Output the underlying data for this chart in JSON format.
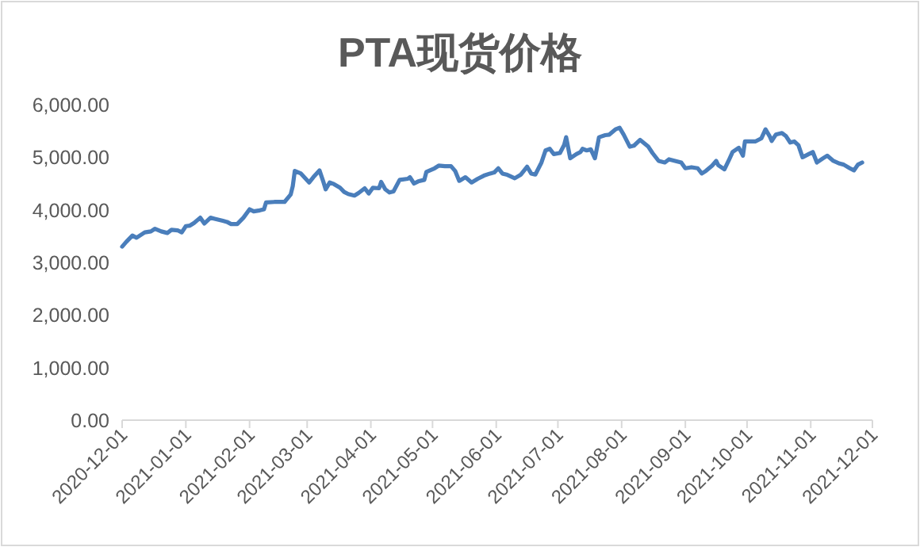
{
  "chart_data": {
    "type": "line",
    "title": "PTA现货价格",
    "x": [
      "2020-12-01",
      "2020-12-03",
      "2020-12-06",
      "2020-12-08",
      "2020-12-12",
      "2020-12-15",
      "2020-12-17",
      "2020-12-20",
      "2020-12-23",
      "2020-12-25",
      "2020-12-28",
      "2020-12-30",
      "2021-01-01",
      "2021-01-03",
      "2021-01-05",
      "2021-01-08",
      "2021-01-10",
      "2021-01-13",
      "2021-01-15",
      "2021-01-19",
      "2021-01-21",
      "2021-01-23",
      "2021-01-26",
      "2021-01-29",
      "2021-02-01",
      "2021-02-03",
      "2021-02-06",
      "2021-02-08",
      "2021-02-09",
      "2021-02-13",
      "2021-02-15",
      "2021-02-18",
      "2021-02-21",
      "2021-02-22",
      "2021-02-23",
      "2021-02-26",
      "2021-03-02",
      "2021-03-04",
      "2021-03-07",
      "2021-03-09",
      "2021-03-10",
      "2021-03-12",
      "2021-03-14",
      "2021-03-17",
      "2021-03-19",
      "2021-03-21",
      "2021-03-24",
      "2021-03-26",
      "2021-03-29",
      "2021-03-31",
      "2021-04-02",
      "2021-04-05",
      "2021-04-06",
      "2021-04-08",
      "2021-04-10",
      "2021-04-12",
      "2021-04-15",
      "2021-04-19",
      "2021-04-20",
      "2021-04-22",
      "2021-04-24",
      "2021-04-27",
      "2021-04-28",
      "2021-05-02",
      "2021-05-04",
      "2021-05-07",
      "2021-05-10",
      "2021-05-12",
      "2021-05-14",
      "2021-05-17",
      "2021-05-20",
      "2021-05-23",
      "2021-05-26",
      "2021-05-29",
      "2021-05-31",
      "2021-06-02",
      "2021-06-04",
      "2021-06-06",
      "2021-06-10",
      "2021-06-13",
      "2021-06-16",
      "2021-06-18",
      "2021-06-20",
      "2021-06-23",
      "2021-06-25",
      "2021-06-27",
      "2021-06-29",
      "2021-07-02",
      "2021-07-04",
      "2021-07-05",
      "2021-07-07",
      "2021-07-10",
      "2021-07-12",
      "2021-07-13",
      "2021-07-15",
      "2021-07-17",
      "2021-07-19",
      "2021-07-21",
      "2021-07-24",
      "2021-07-26",
      "2021-07-29",
      "2021-07-31",
      "2021-08-02",
      "2021-08-05",
      "2021-08-07",
      "2021-08-10",
      "2021-08-14",
      "2021-08-16",
      "2021-08-19",
      "2021-08-22",
      "2021-08-24",
      "2021-08-27",
      "2021-08-30",
      "2021-09-01",
      "2021-09-04",
      "2021-09-07",
      "2021-09-09",
      "2021-09-11",
      "2021-09-14",
      "2021-09-16",
      "2021-09-17",
      "2021-09-20",
      "2021-09-22",
      "2021-09-24",
      "2021-09-27",
      "2021-09-29",
      "2021-09-30",
      "2021-10-03",
      "2021-10-05",
      "2021-10-08",
      "2021-10-10",
      "2021-10-12",
      "2021-10-13",
      "2021-10-15",
      "2021-10-18",
      "2021-10-20",
      "2021-10-22",
      "2021-10-24",
      "2021-10-26",
      "2021-10-28",
      "2021-10-31",
      "2021-11-02",
      "2021-11-04",
      "2021-11-07",
      "2021-11-09",
      "2021-11-12",
      "2021-11-15",
      "2021-11-17",
      "2021-11-20",
      "2021-11-22",
      "2021-11-24",
      "2021-11-26"
    ],
    "series": [
      {
        "color": "#4a7ebb",
        "values": [
          3300,
          3390,
          3510,
          3470,
          3570,
          3590,
          3640,
          3590,
          3560,
          3620,
          3610,
          3570,
          3690,
          3700,
          3750,
          3850,
          3740,
          3850,
          3830,
          3790,
          3770,
          3730,
          3730,
          3850,
          4010,
          3970,
          3990,
          4010,
          4140,
          4150,
          4150,
          4150,
          4290,
          4450,
          4740,
          4690,
          4520,
          4620,
          4750,
          4520,
          4390,
          4520,
          4490,
          4420,
          4340,
          4300,
          4270,
          4320,
          4410,
          4310,
          4420,
          4410,
          4530,
          4390,
          4330,
          4350,
          4570,
          4590,
          4620,
          4500,
          4540,
          4570,
          4720,
          4790,
          4840,
          4830,
          4830,
          4740,
          4550,
          4620,
          4520,
          4590,
          4650,
          4690,
          4710,
          4790,
          4690,
          4670,
          4600,
          4670,
          4820,
          4690,
          4670,
          4900,
          5130,
          5160,
          5060,
          5080,
          5230,
          5380,
          4980,
          5060,
          5100,
          5160,
          5130,
          5150,
          4980,
          5380,
          5420,
          5430,
          5530,
          5560,
          5430,
          5200,
          5220,
          5330,
          5200,
          5080,
          4930,
          4900,
          4960,
          4930,
          4900,
          4790,
          4810,
          4790,
          4690,
          4740,
          4840,
          4930,
          4850,
          4770,
          4930,
          5100,
          5180,
          5030,
          5300,
          5300,
          5300,
          5360,
          5530,
          5400,
          5310,
          5430,
          5460,
          5400,
          5280,
          5300,
          5230,
          5000,
          5060,
          5100,
          4900,
          4980,
          5030,
          4930,
          4880,
          4860,
          4790,
          4750,
          4860,
          4900
        ]
      }
    ],
    "xlim": [
      "2020-12-01",
      "2021-12-01"
    ],
    "xticks": [
      "2020-12-01",
      "2021-01-01",
      "2021-02-01",
      "2021-03-01",
      "2021-04-01",
      "2021-05-01",
      "2021-06-01",
      "2021-07-01",
      "2021-08-01",
      "2021-09-01",
      "2021-10-01",
      "2021-11-01",
      "2021-12-01"
    ],
    "ylim": [
      0,
      6000
    ],
    "yticks": [
      {
        "value": 0,
        "label": "0.00"
      },
      {
        "value": 1000,
        "label": "1,000.00"
      },
      {
        "value": 2000,
        "label": "2,000.00"
      },
      {
        "value": 3000,
        "label": "3,000.00"
      },
      {
        "value": 4000,
        "label": "4,000.00"
      },
      {
        "value": 5000,
        "label": "5,000.00"
      },
      {
        "value": 6000,
        "label": "6,000.00"
      }
    ],
    "grid": false,
    "marker": "none",
    "line_style": "solid"
  }
}
